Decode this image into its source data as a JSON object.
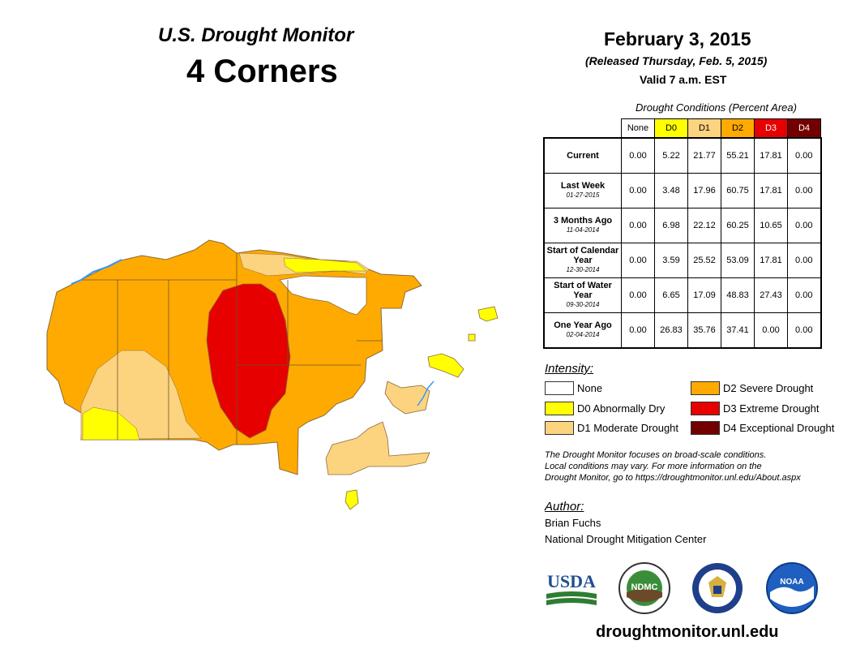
{
  "title": {
    "sub": "U.S. Drought Monitor",
    "region": "4 Corners"
  },
  "header": {
    "date": "February 3, 2015",
    "released": "(Released Thursday, Feb. 5, 2015)",
    "valid": "Valid 7 a.m. EST"
  },
  "table": {
    "caption": "Drought Conditions (Percent Area)",
    "columns": [
      "None",
      "D0",
      "D1",
      "D2",
      "D3",
      "D4"
    ],
    "rows": [
      {
        "label": "Current",
        "date": "",
        "values": [
          "0.00",
          "5.22",
          "21.77",
          "55.21",
          "17.81",
          "0.00"
        ]
      },
      {
        "label": "Last Week",
        "date": "01-27-2015",
        "values": [
          "0.00",
          "3.48",
          "17.96",
          "60.75",
          "17.81",
          "0.00"
        ]
      },
      {
        "label": "3 Months Ago",
        "date": "11-04-2014",
        "values": [
          "0.00",
          "6.98",
          "22.12",
          "60.25",
          "10.65",
          "0.00"
        ]
      },
      {
        "label": "Start of Calendar Year",
        "date": "12-30-2014",
        "values": [
          "0.00",
          "3.59",
          "25.52",
          "53.09",
          "17.81",
          "0.00"
        ]
      },
      {
        "label": "Start of Water Year",
        "date": "09-30-2014",
        "values": [
          "0.00",
          "6.65",
          "17.09",
          "48.83",
          "27.43",
          "0.00"
        ]
      },
      {
        "label": "One Year Ago",
        "date": "02-04-2014",
        "values": [
          "0.00",
          "26.83",
          "35.76",
          "37.41",
          "0.00",
          "0.00"
        ]
      }
    ]
  },
  "legend": {
    "title": "Intensity:",
    "items": [
      {
        "label": "None",
        "color": "#ffffff"
      },
      {
        "label": "D0 Abnormally Dry",
        "color": "#ffff00"
      },
      {
        "label": "D1 Moderate Drought",
        "color": "#fcd37f"
      },
      {
        "label": "D2 Severe Drought",
        "color": "#ffaa00"
      },
      {
        "label": "D3 Extreme Drought",
        "color": "#e60000"
      },
      {
        "label": "D4 Exceptional Drought",
        "color": "#730000"
      }
    ]
  },
  "note": {
    "line1": "The Drought Monitor focuses on broad-scale conditions.",
    "line2": "Local conditions may vary. For more information on the",
    "line3": "Drought Monitor, go to https://droughtmonitor.unl.edu/About.aspx"
  },
  "author": {
    "title": "Author:",
    "name": "Brian Fuchs",
    "org": "National Drought Mitigation Center"
  },
  "logos": {
    "usda": "USDA",
    "ndmc": "NDMC",
    "noaa": "NOAA"
  },
  "footer": {
    "url": "droughtmonitor.unl.edu"
  },
  "colors": {
    "none": "#ffffff",
    "d0": "#ffff00",
    "d1": "#fcd37f",
    "d2": "#ffaa00",
    "d3": "#e60000",
    "d4": "#730000",
    "water": "#3399ff"
  }
}
